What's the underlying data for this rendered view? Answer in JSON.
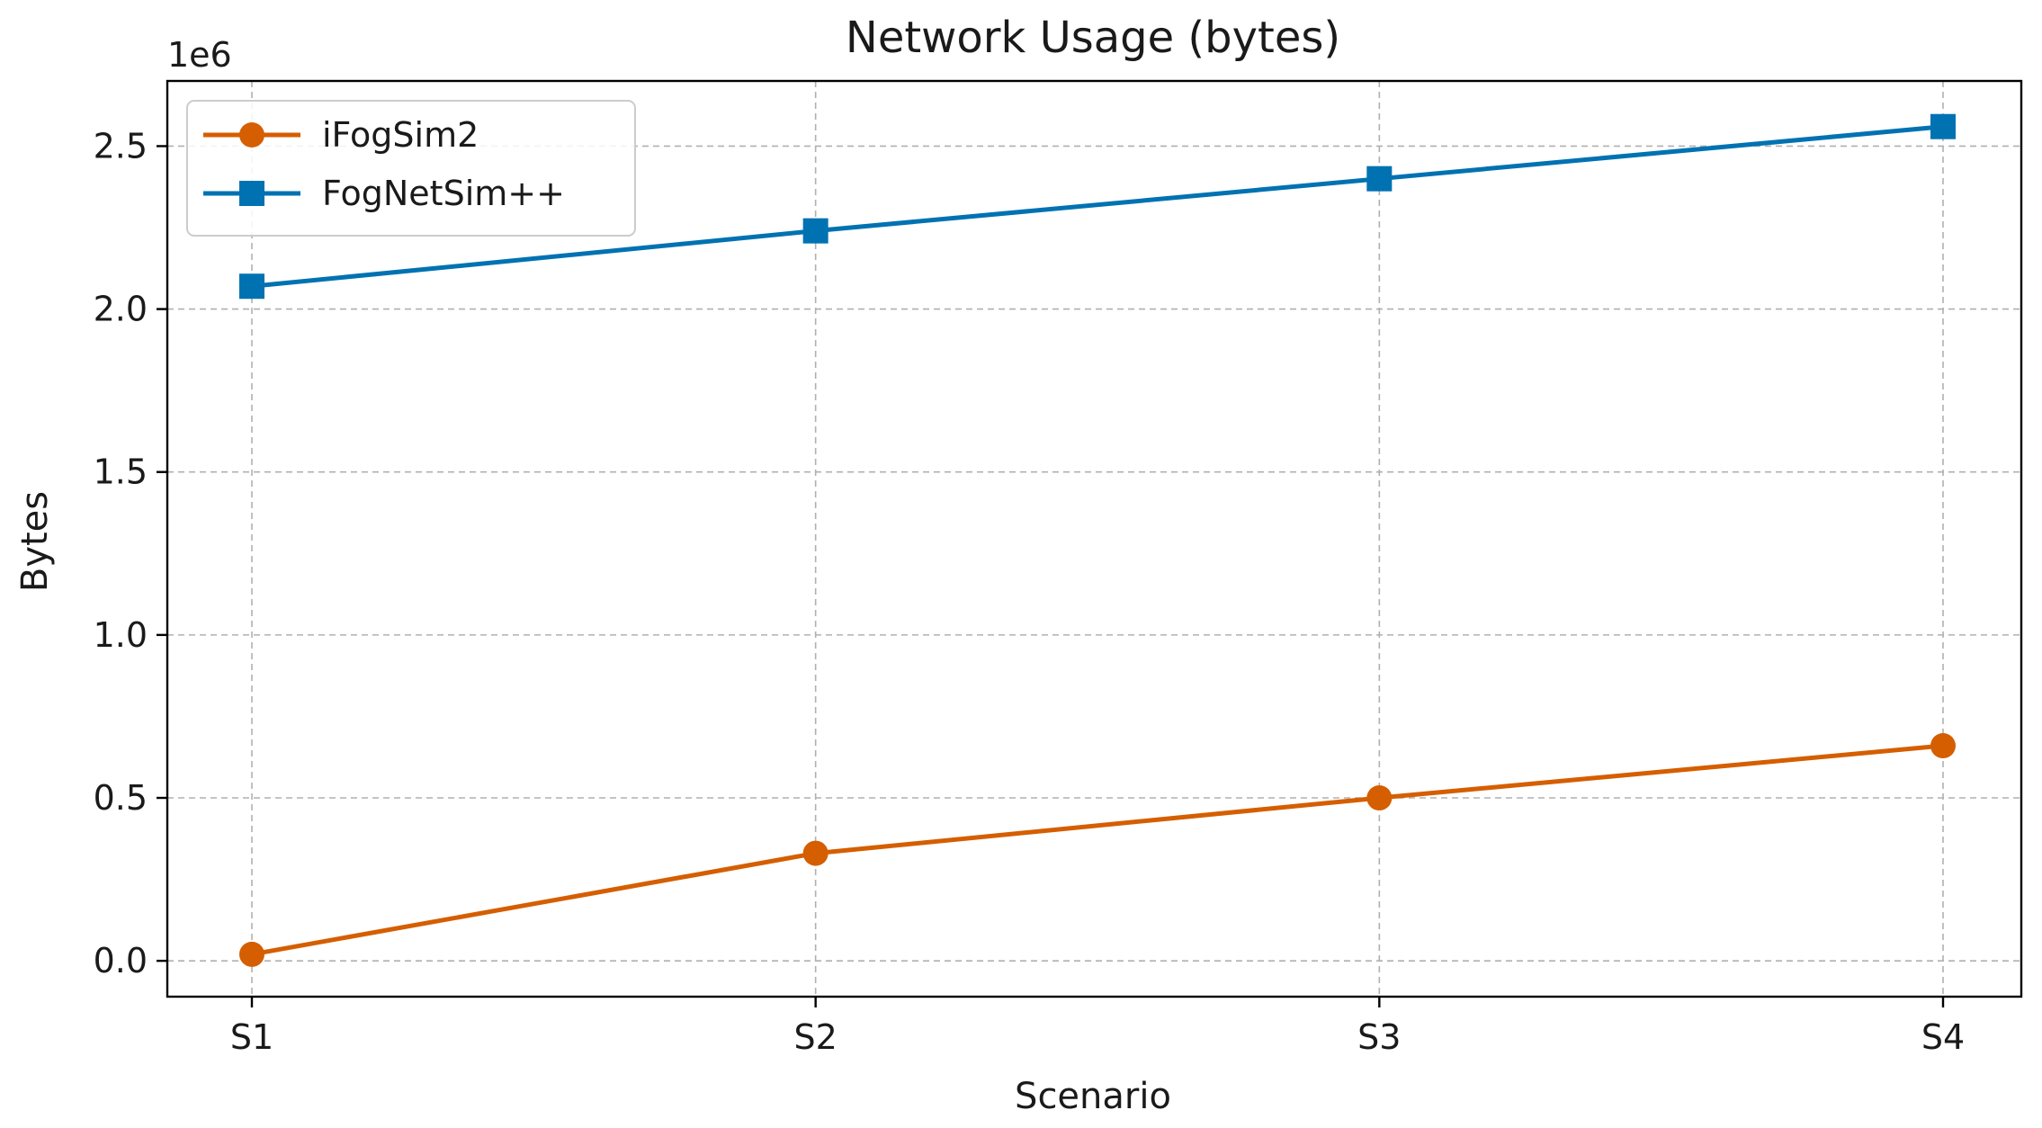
{
  "chart_data": {
    "type": "line",
    "title": "Network Usage (bytes)",
    "xlabel": "Scenario",
    "ylabel": "Bytes",
    "y_offset_label": "1e6",
    "categories": [
      "S1",
      "S2",
      "S3",
      "S4"
    ],
    "ylim": [
      -0.11,
      2.7
    ],
    "yticks": [
      0.0,
      0.5,
      1.0,
      1.5,
      2.0,
      2.5
    ],
    "ytick_labels": [
      "0.0",
      "0.5",
      "1.0",
      "1.5",
      "2.0",
      "2.5"
    ],
    "grid": true,
    "legend_position": "upper-left",
    "series": [
      {
        "name": "iFogSim2",
        "marker": "circle",
        "color": "#d55e00",
        "values": [
          0.02,
          0.33,
          0.5,
          0.66
        ]
      },
      {
        "name": "FogNetSim++",
        "marker": "square",
        "color": "#0072b2",
        "values": [
          2.07,
          2.24,
          2.4,
          2.56
        ]
      }
    ]
  }
}
